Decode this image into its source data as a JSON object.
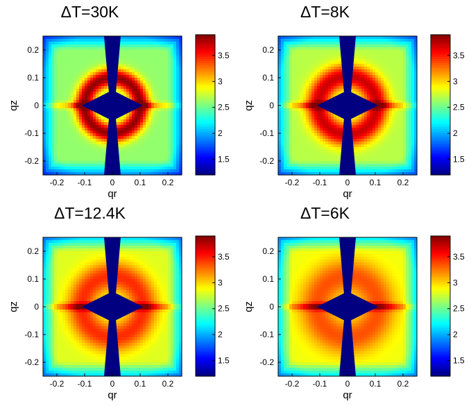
{
  "chart_data": [
    {
      "type": "heatmap",
      "title": "ΔT=30K",
      "xlabel": "qr",
      "ylabel": "qz",
      "xlim": [
        -0.25,
        0.25
      ],
      "ylim": [
        -0.25,
        0.25
      ],
      "xticks": [
        "-0.2",
        "-0.1",
        "0",
        "0.1",
        "0.2"
      ],
      "yticks": [
        "0.2",
        "0.1",
        "0",
        "-0.1",
        "-0.2"
      ],
      "colorbar": {
        "ticks": [
          "3.5",
          "3",
          "2.5",
          "2",
          "1.5"
        ],
        "range": [
          1.2,
          3.9
        ]
      },
      "ring_radius": 0.1,
      "ring_width": 0.035,
      "ring_peak": 3.85,
      "background_level": 2.6
    },
    {
      "type": "heatmap",
      "title": "ΔT=8K",
      "xlabel": "qr",
      "ylabel": "qz",
      "xlim": [
        -0.25,
        0.25
      ],
      "ylim": [
        -0.25,
        0.25
      ],
      "xticks": [
        "-0.2",
        "-0.1",
        "0",
        "0.1",
        "0.2"
      ],
      "yticks": [
        "0.2",
        "0.1",
        "0",
        "-0.1",
        "-0.2"
      ],
      "colorbar": {
        "ticks": [
          "3.5",
          "3",
          "2.5",
          "2",
          "1.5"
        ],
        "range": [
          1.2,
          3.9
        ]
      },
      "ring_radius": 0.105,
      "ring_width": 0.045,
      "ring_peak": 3.7,
      "background_level": 2.7
    },
    {
      "type": "heatmap",
      "title": "ΔT=12.4K",
      "xlabel": "qr",
      "ylabel": "qz",
      "xlim": [
        -0.25,
        0.25
      ],
      "ylim": [
        -0.25,
        0.25
      ],
      "xticks": [
        "-0.2",
        "-0.1",
        "0",
        "0.1",
        "0.2"
      ],
      "yticks": [
        "0.2",
        "0.1",
        "0",
        "-0.1",
        "-0.2"
      ],
      "colorbar": {
        "ticks": [
          "3.5",
          "3",
          "2.5",
          "2",
          "1.5"
        ],
        "range": [
          1.2,
          3.9
        ]
      },
      "ring_radius": 0.11,
      "ring_width": 0.055,
      "ring_peak": 3.45,
      "background_level": 2.8
    },
    {
      "type": "heatmap",
      "title": "ΔT=6K",
      "xlabel": "qr",
      "ylabel": "qz",
      "xlim": [
        -0.25,
        0.25
      ],
      "ylim": [
        -0.25,
        0.25
      ],
      "xticks": [
        "-0.2",
        "-0.1",
        "0",
        "0.1",
        "0.2"
      ],
      "yticks": [
        "0.2",
        "0.1",
        "0",
        "-0.1",
        "-0.2"
      ],
      "colorbar": {
        "ticks": [
          "3.5",
          "3",
          "2.5",
          "2",
          "1.5"
        ],
        "range": [
          1.2,
          3.9
        ]
      },
      "ring_radius": 0.11,
      "ring_width": 0.065,
      "ring_peak": 3.35,
      "background_level": 2.85
    }
  ]
}
